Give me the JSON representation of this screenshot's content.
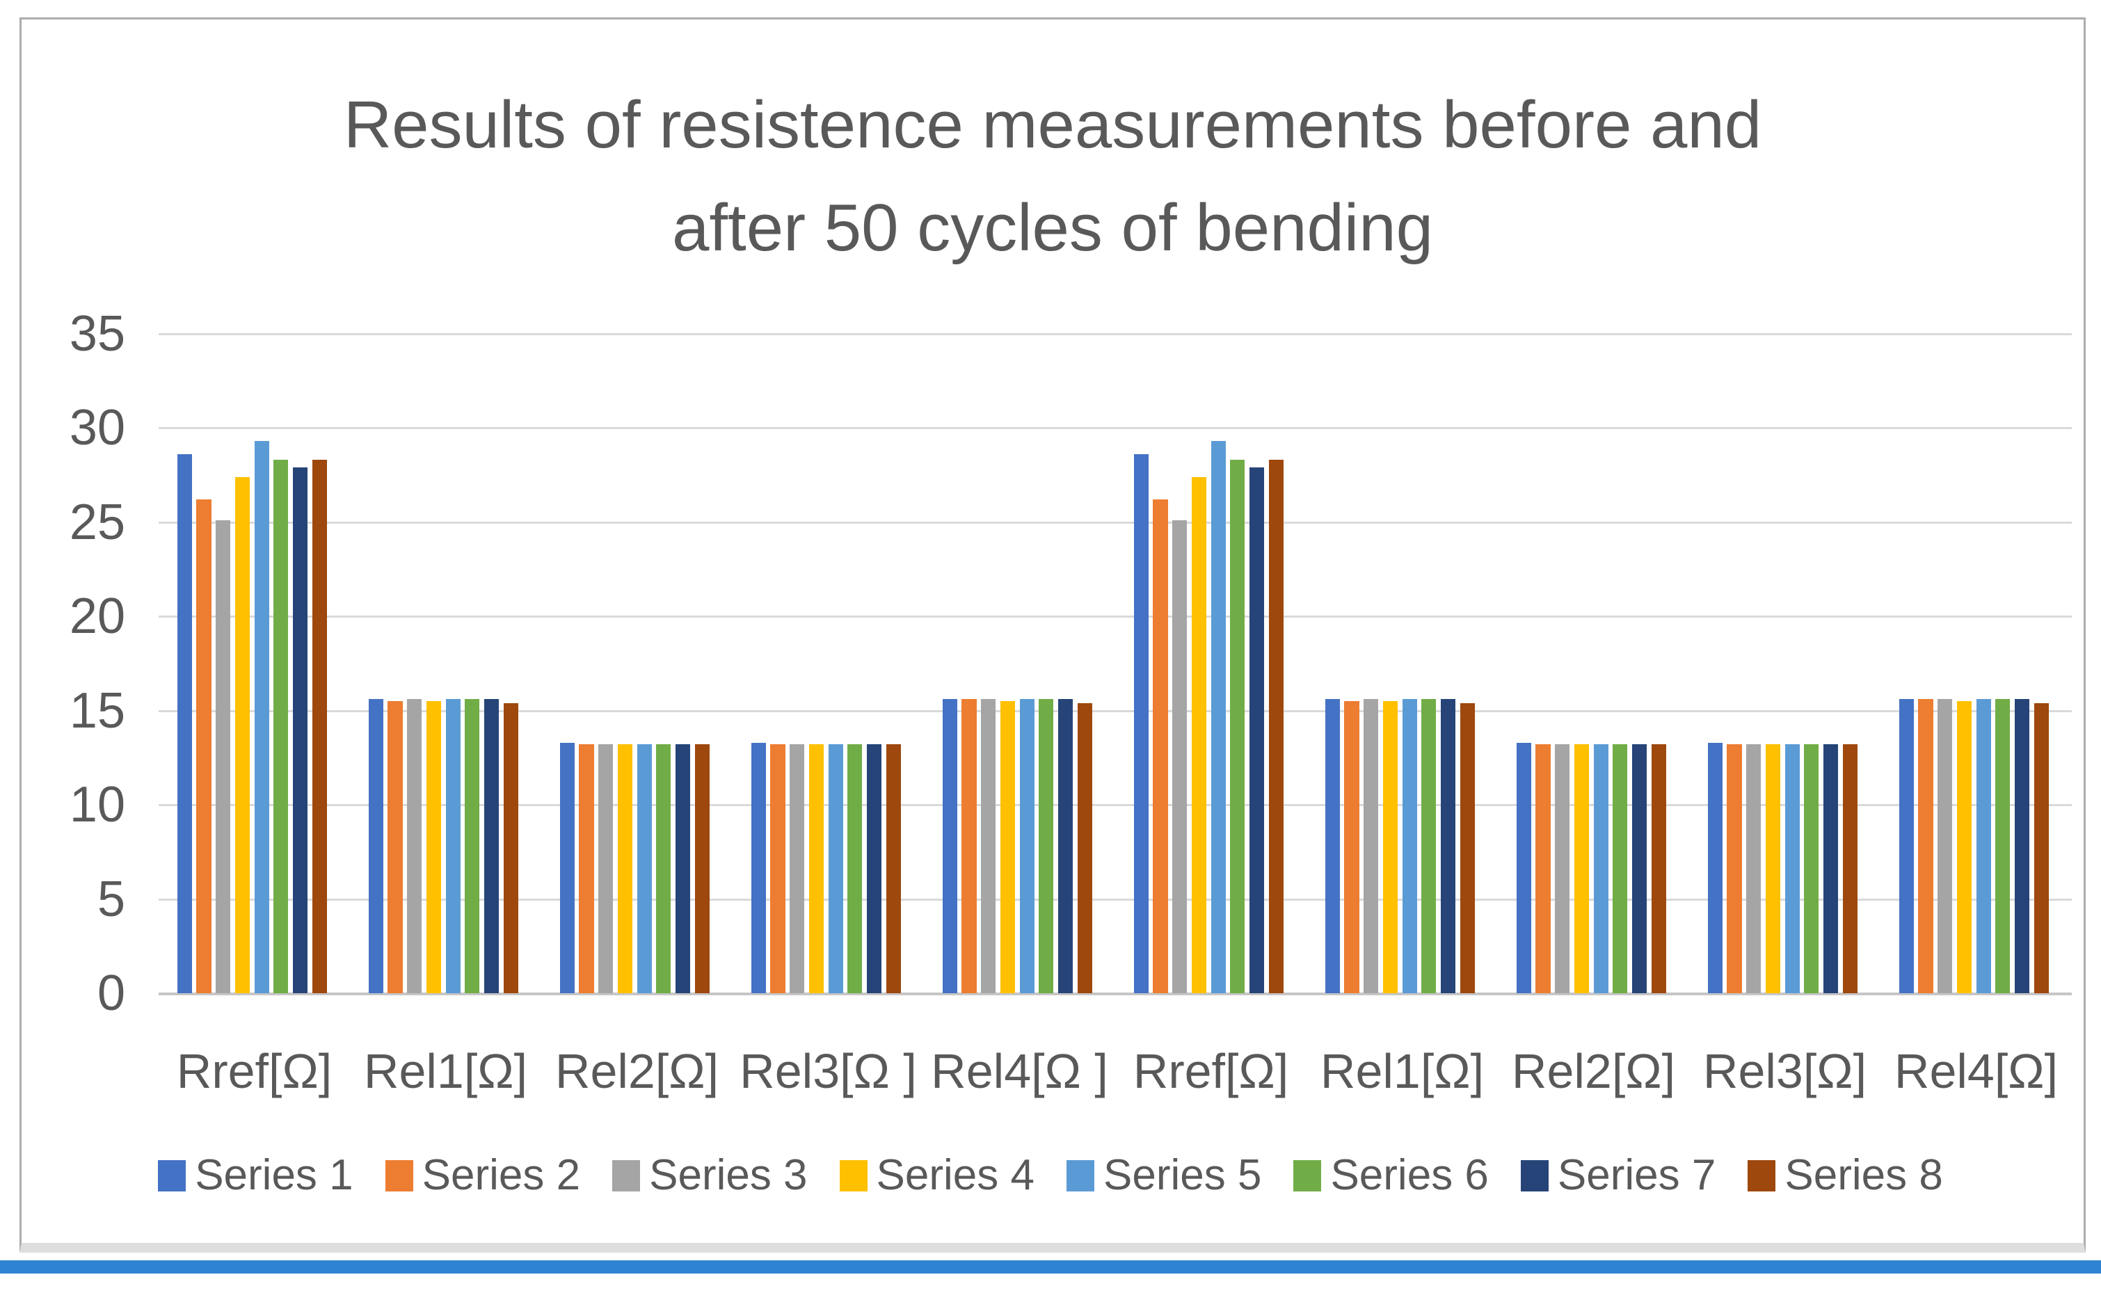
{
  "chart_data": {
    "type": "bar",
    "title_lines": [
      "Results of resistence measurements before and",
      "after 50 cycles of bending"
    ],
    "categories": [
      "Rref[Ω]",
      "Rel1[Ω]",
      "Rel2[Ω]",
      "Rel3[Ω ]",
      "Rel4[Ω ]",
      "Rref[Ω]",
      "Rel1[Ω]",
      "Rel2[Ω]",
      "Rel3[Ω]",
      "Rel4[Ω]"
    ],
    "series": [
      {
        "name": "Series 1",
        "color": "#4472C4",
        "values": [
          28.6,
          15.6,
          13.3,
          13.3,
          15.6,
          28.6,
          15.6,
          13.3,
          13.3,
          15.6
        ]
      },
      {
        "name": "Series 2",
        "color": "#ED7D31",
        "values": [
          26.2,
          15.5,
          13.2,
          13.2,
          15.6,
          26.2,
          15.5,
          13.2,
          13.2,
          15.6
        ]
      },
      {
        "name": "Series 3",
        "color": "#A5A5A5",
        "values": [
          25.1,
          15.6,
          13.2,
          13.2,
          15.6,
          25.1,
          15.6,
          13.2,
          13.2,
          15.6
        ]
      },
      {
        "name": "Series 4",
        "color": "#FFC000",
        "values": [
          27.4,
          15.5,
          13.2,
          13.2,
          15.5,
          27.4,
          15.5,
          13.2,
          13.2,
          15.5
        ]
      },
      {
        "name": "Series 5",
        "color": "#5B9BD5",
        "values": [
          29.3,
          15.6,
          13.2,
          13.2,
          15.6,
          29.3,
          15.6,
          13.2,
          13.2,
          15.6
        ]
      },
      {
        "name": "Series 6",
        "color": "#70AD47",
        "values": [
          28.3,
          15.6,
          13.2,
          13.2,
          15.6,
          28.3,
          15.6,
          13.2,
          13.2,
          15.6
        ]
      },
      {
        "name": "Series 7",
        "color": "#264478",
        "values": [
          27.9,
          15.6,
          13.2,
          13.2,
          15.6,
          27.9,
          15.6,
          13.2,
          13.2,
          15.6
        ]
      },
      {
        "name": "Series 8",
        "color": "#9E480E",
        "values": [
          28.3,
          15.4,
          13.2,
          13.2,
          15.4,
          28.3,
          15.4,
          13.2,
          13.2,
          15.4
        ]
      }
    ],
    "y_ticks": [
      "35",
      "30",
      "25",
      "20",
      "15",
      "10",
      "5",
      "0"
    ],
    "ylim": [
      0,
      35
    ],
    "grid": true,
    "legend_position": "bottom"
  },
  "colors": {
    "text": "#595959",
    "gridline": "#d9d9d9",
    "axis_line": "#c6c6c6",
    "frame_border": "#acacac",
    "frame_bottom_strip": "#dedede",
    "bottom_accent_line": "#2e84d3",
    "background": "#ffffff"
  }
}
